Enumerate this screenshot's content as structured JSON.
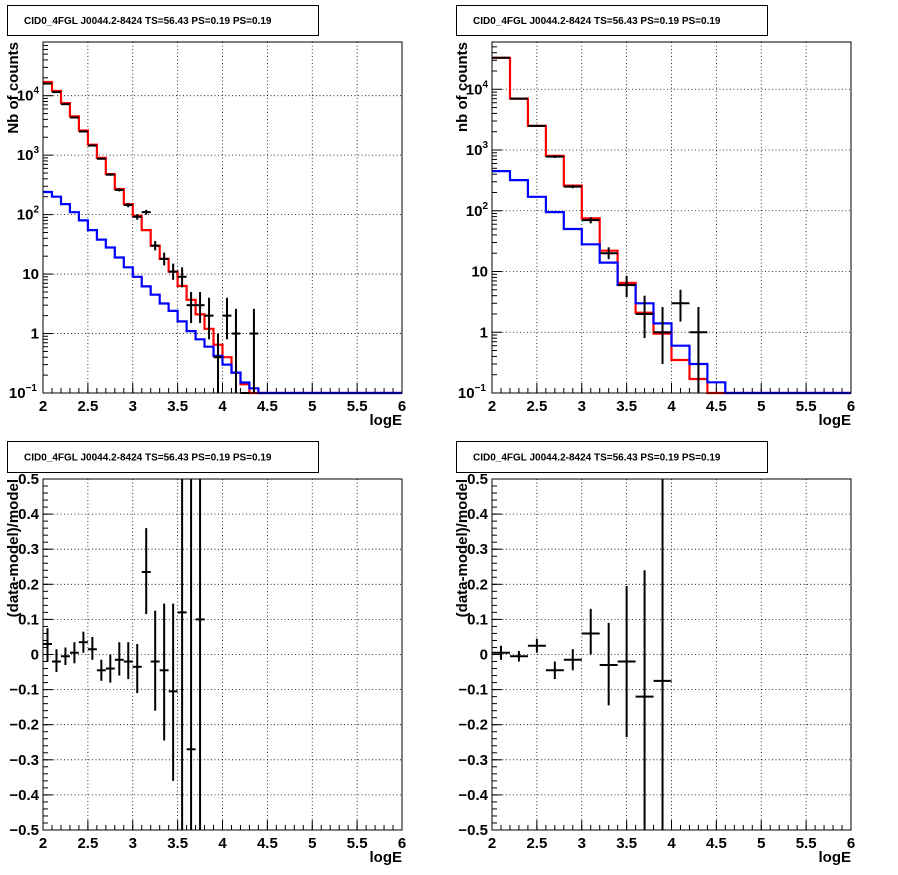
{
  "chart_data": [
    {
      "type": "line",
      "scale": "log",
      "title": "CID0_4FGL J0044.2-8424 TS=56.43 PS=0.19 PS=0.19",
      "xlabel": "logE",
      "ylabel": "Nb of counts",
      "xlim": [
        2,
        6
      ],
      "ylim": [
        0.1,
        80000
      ],
      "xticks": [
        "2",
        "2.5",
        "3",
        "3.5",
        "4",
        "4.5",
        "5",
        "5.5",
        "6"
      ],
      "yticks": [
        {
          "v": 0.1,
          "m": "10",
          "e": "−1"
        },
        {
          "v": 1,
          "m": "1",
          "e": ""
        },
        {
          "v": 10,
          "m": "10",
          "e": ""
        },
        {
          "v": 100,
          "m": "10",
          "e": "2"
        },
        {
          "v": 1000,
          "m": "10",
          "e": "3"
        },
        {
          "v": 10000,
          "m": "10",
          "e": "4"
        }
      ],
      "grid": true,
      "series": [
        {
          "color": "#ff0000",
          "kind": "step",
          "edges": [
            2.0,
            2.1,
            2.2,
            2.3,
            2.4,
            2.5,
            2.6,
            2.7,
            2.8,
            2.9,
            3.0,
            3.1,
            3.2,
            3.3,
            3.4,
            3.5,
            3.6,
            3.7,
            3.8,
            3.9,
            4.0,
            4.1,
            4.2,
            4.3,
            4.4,
            4.5,
            4.6,
            4.7,
            4.8,
            4.9,
            5.0,
            5.1,
            5.2,
            5.3,
            5.4,
            5.5,
            5.6,
            5.7,
            5.8,
            5.9,
            6.0
          ],
          "values": [
            17000,
            12000,
            7500,
            4500,
            2600,
            1500,
            900,
            480,
            270,
            150,
            95,
            55,
            30,
            18,
            11,
            6.3,
            3.7,
            2.1,
            1.2,
            0.65,
            0.4,
            0.22,
            0.14,
            0.1,
            0.1,
            0.1,
            0.1,
            0.1,
            0.1,
            0.1,
            0.1,
            0.1,
            0.1,
            0.1,
            0.1,
            0.1,
            0.1,
            0.1,
            0.1,
            0.1
          ]
        },
        {
          "color": "#0000ff",
          "kind": "step",
          "edges": [
            2.0,
            2.1,
            2.2,
            2.3,
            2.4,
            2.5,
            2.6,
            2.7,
            2.8,
            2.9,
            3.0,
            3.1,
            3.2,
            3.3,
            3.4,
            3.5,
            3.6,
            3.7,
            3.8,
            3.9,
            4.0,
            4.1,
            4.2,
            4.3,
            4.4,
            4.5,
            4.6,
            4.7,
            4.8,
            4.9,
            5.0,
            5.1,
            5.2,
            5.3,
            5.4,
            5.5,
            5.6,
            5.7,
            5.8,
            5.9,
            6.0
          ],
          "values": [
            240,
            200,
            150,
            110,
            80,
            55,
            38,
            28,
            19,
            13,
            9,
            6.2,
            4.5,
            3.2,
            2.4,
            1.6,
            1.1,
            0.8,
            0.6,
            0.42,
            0.3,
            0.22,
            0.15,
            0.12,
            0.1,
            0.1,
            0.1,
            0.1,
            0.1,
            0.1,
            0.1,
            0.1,
            0.1,
            0.1,
            0.1,
            0.1,
            0.1,
            0.1,
            0.1,
            0.1
          ]
        },
        {
          "color": "#000000",
          "kind": "points",
          "x": [
            2.05,
            2.15,
            2.25,
            2.35,
            2.45,
            2.55,
            2.65,
            2.75,
            2.85,
            2.95,
            3.05,
            3.15,
            3.25,
            3.35,
            3.45,
            3.55,
            3.65,
            3.75,
            3.85,
            3.95,
            4.05,
            4.15,
            4.25,
            4.35
          ],
          "y": [
            16000,
            11500,
            7200,
            4300,
            2500,
            1450,
            870,
            470,
            260,
            145,
            92,
            110,
            30,
            18,
            11,
            9,
            3,
            3,
            2,
            0.4,
            2,
            1,
            0.1,
            1
          ],
          "xerr": 0.05,
          "ylo": [
            15800,
            11300,
            7050,
            4200,
            2450,
            1410,
            840,
            450,
            245,
            133,
            82,
            100,
            25,
            14,
            8,
            6,
            1.5,
            1.5,
            0.8,
            0.1,
            0.8,
            0.1,
            0.1,
            0.1
          ],
          "yhi": [
            16250,
            11700,
            7350,
            4450,
            2550,
            1490,
            900,
            490,
            275,
            157,
            102,
            120,
            36,
            23,
            15,
            13,
            5,
            5,
            4,
            1,
            4,
            2.6,
            0.1,
            2.6
          ]
        }
      ]
    },
    {
      "type": "line",
      "scale": "log",
      "title": "CID0_4FGL J0044.2-8424 TS=56.43 PS=0.19 PS=0.19",
      "xlabel": "logE",
      "ylabel": "nb of counts",
      "xlim": [
        2,
        6
      ],
      "ylim": [
        0.1,
        60000
      ],
      "xticks": [
        "2",
        "2.5",
        "3",
        "3.5",
        "4",
        "4.5",
        "5",
        "5.5",
        "6"
      ],
      "yticks": [
        {
          "v": 0.1,
          "m": "10",
          "e": "−1"
        },
        {
          "v": 1,
          "m": "1",
          "e": ""
        },
        {
          "v": 10,
          "m": "10",
          "e": ""
        },
        {
          "v": 100,
          "m": "10",
          "e": "2"
        },
        {
          "v": 1000,
          "m": "10",
          "e": "3"
        },
        {
          "v": 10000,
          "m": "10",
          "e": "4"
        }
      ],
      "grid": true,
      "series": [
        {
          "color": "#ff0000",
          "kind": "step",
          "edges": [
            2.0,
            2.2,
            2.4,
            2.6,
            2.8,
            3.0,
            3.2,
            3.4,
            3.6,
            3.8,
            4.0,
            4.2,
            4.4,
            4.6,
            4.8,
            5.0,
            5.2,
            5.4,
            5.6,
            5.8,
            6.0
          ],
          "values": [
            33000,
            7000,
            2500,
            800,
            260,
            75,
            22,
            6.5,
            2.1,
            0.95,
            0.35,
            0.17,
            0.1,
            0.1,
            0.1,
            0.1,
            0.1,
            0.1,
            0.1,
            0.1
          ]
        },
        {
          "color": "#0000ff",
          "kind": "step",
          "edges": [
            2.0,
            2.2,
            2.4,
            2.6,
            2.8,
            3.0,
            3.2,
            3.4,
            3.6,
            3.8,
            4.0,
            4.2,
            4.4,
            4.6,
            4.8,
            5.0,
            5.2,
            5.4,
            5.6,
            5.8,
            6.0
          ],
          "values": [
            450,
            320,
            170,
            95,
            50,
            28,
            14,
            6,
            3,
            1.4,
            0.6,
            0.3,
            0.15,
            0.1,
            0.1,
            0.1,
            0.1,
            0.1,
            0.1,
            0.1
          ]
        },
        {
          "color": "#000000",
          "kind": "points",
          "x": [
            2.1,
            2.3,
            2.5,
            2.7,
            2.9,
            3.1,
            3.3,
            3.5,
            3.7,
            3.9,
            4.1,
            4.3
          ],
          "y": [
            33000,
            7000,
            2500,
            780,
            250,
            70,
            20,
            6,
            2,
            1,
            3,
            1
          ],
          "xerr": 0.1,
          "ylo": [
            32500,
            6800,
            2400,
            740,
            235,
            62,
            16,
            3.8,
            0.8,
            0.3,
            1.5,
            0.1
          ],
          "yhi": [
            33500,
            7200,
            2600,
            820,
            265,
            78,
            25,
            8.5,
            4,
            2.6,
            5,
            2.6
          ]
        }
      ]
    },
    {
      "type": "scatter",
      "scale": "linear",
      "title": "CID0_4FGL J0044.2-8424 TS=56.43 PS=0.19 PS=0.19",
      "xlabel": "logE",
      "ylabel": "(data-model)/model",
      "xlim": [
        2,
        6
      ],
      "ylim": [
        -0.5,
        0.5
      ],
      "xticks": [
        "2",
        "2.5",
        "3",
        "3.5",
        "4",
        "4.5",
        "5",
        "5.5",
        "6"
      ],
      "yticks": [
        {
          "v": -0.5,
          "t": "−0.5"
        },
        {
          "v": -0.4,
          "t": "−0.4"
        },
        {
          "v": -0.3,
          "t": "−0.3"
        },
        {
          "v": -0.2,
          "t": "−0.2"
        },
        {
          "v": -0.1,
          "t": "−0.1"
        },
        {
          "v": 0,
          "t": "0"
        },
        {
          "v": 0.1,
          "t": "0.1"
        },
        {
          "v": 0.2,
          "t": "0.2"
        },
        {
          "v": 0.3,
          "t": "0.3"
        },
        {
          "v": 0.4,
          "t": "0.4"
        },
        {
          "v": 0.5,
          "t": "0.5"
        }
      ],
      "grid": true,
      "series": [
        {
          "color": "#000000",
          "kind": "points",
          "x": [
            2.05,
            2.15,
            2.25,
            2.35,
            2.45,
            2.55,
            2.65,
            2.75,
            2.85,
            2.95,
            3.05,
            3.15,
            3.25,
            3.35,
            3.45,
            3.55,
            3.65,
            3.75
          ],
          "y": [
            0.03,
            -0.02,
            -0.005,
            0.005,
            0.035,
            0.015,
            -0.045,
            -0.04,
            -0.015,
            -0.02,
            -0.035,
            0.235,
            -0.02,
            -0.045,
            -0.105,
            0.12,
            -0.27,
            0.1
          ],
          "xerr": 0.05,
          "ylo": [
            -0.02,
            -0.05,
            -0.03,
            -0.025,
            0.005,
            -0.015,
            -0.075,
            -0.08,
            -0.06,
            -0.07,
            -0.11,
            0.115,
            -0.16,
            -0.245,
            -0.36,
            -0.5,
            -0.5,
            -0.5
          ],
          "yhi": [
            0.075,
            0.015,
            0.02,
            0.035,
            0.065,
            0.05,
            -0.015,
            0.0,
            0.035,
            0.035,
            0.03,
            0.36,
            0.125,
            0.145,
            0.145,
            0.5,
            0.5,
            0.5
          ]
        }
      ]
    },
    {
      "type": "scatter",
      "scale": "linear",
      "title": "CID0_4FGL J0044.2-8424 TS=56.43 PS=0.19 PS=0.19",
      "xlabel": "logE",
      "ylabel": "(data-model)/model",
      "xlim": [
        2,
        6
      ],
      "ylim": [
        -0.5,
        0.5
      ],
      "xticks": [
        "2",
        "2.5",
        "3",
        "3.5",
        "4",
        "4.5",
        "5",
        "5.5",
        "6"
      ],
      "yticks": [
        {
          "v": -0.5,
          "t": "−0.5"
        },
        {
          "v": -0.4,
          "t": "−0.4"
        },
        {
          "v": -0.3,
          "t": "−0.3"
        },
        {
          "v": -0.2,
          "t": "−0.2"
        },
        {
          "v": -0.1,
          "t": "−0.1"
        },
        {
          "v": 0,
          "t": "0"
        },
        {
          "v": 0.1,
          "t": "0.1"
        },
        {
          "v": 0.2,
          "t": "0.2"
        },
        {
          "v": 0.3,
          "t": "0.3"
        },
        {
          "v": 0.4,
          "t": "0.4"
        },
        {
          "v": 0.5,
          "t": "0.5"
        }
      ],
      "grid": true,
      "series": [
        {
          "color": "#000000",
          "kind": "points",
          "x": [
            2.1,
            2.3,
            2.5,
            2.7,
            2.9,
            3.1,
            3.3,
            3.5,
            3.7,
            3.9
          ],
          "y": [
            0.005,
            -0.005,
            0.025,
            -0.045,
            -0.015,
            0.06,
            -0.03,
            -0.02,
            -0.12,
            -0.075
          ],
          "xerr": 0.1,
          "ylo": [
            -0.015,
            -0.02,
            0.005,
            -0.07,
            -0.045,
            0.0,
            -0.145,
            -0.235,
            -0.5,
            -0.5
          ],
          "yhi": [
            0.025,
            0.01,
            0.045,
            -0.02,
            0.015,
            0.13,
            0.09,
            0.195,
            0.24,
            0.5
          ]
        }
      ]
    }
  ]
}
